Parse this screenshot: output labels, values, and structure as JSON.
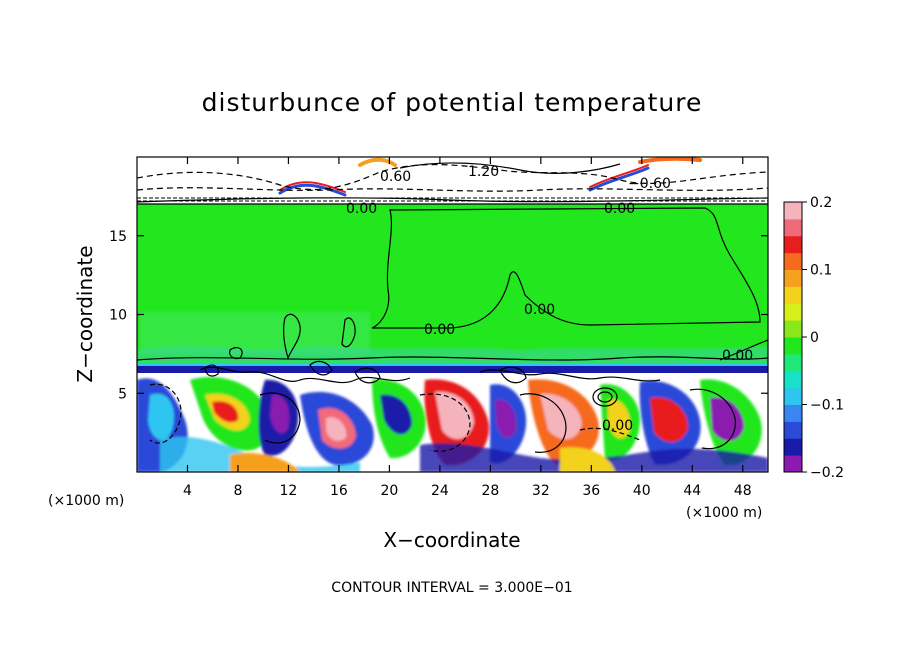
{
  "chart_data": {
    "type": "heatmap",
    "title": "disturbunce of potential temperature",
    "xlabel": "X−coordinate",
    "ylabel": "Z−coordinate",
    "x_unit_label": "(×1000 m)",
    "z_unit_label": "(×1000 m)",
    "xlim": [
      0,
      50
    ],
    "ylim": [
      0,
      20
    ],
    "x_ticks": [
      4,
      8,
      12,
      16,
      20,
      24,
      28,
      32,
      36,
      40,
      44,
      48
    ],
    "y_ticks": [
      5,
      10,
      15
    ],
    "colorbar": {
      "range": [
        -0.2,
        0.2
      ],
      "tick_values": [
        0.2,
        0.1,
        0,
        -0.1,
        -0.2
      ],
      "tick_labels": [
        "0.2",
        "0.1",
        "0",
        "−0.1",
        "−0.2"
      ],
      "colors": [
        "#8a1ab0",
        "#1a1aa8",
        "#2a4ad8",
        "#3a86f0",
        "#2ec6f0",
        "#19e0c8",
        "#1ee878",
        "#22e61e",
        "#8ae81a",
        "#d8ee1a",
        "#f2d21a",
        "#f5a01e",
        "#f56a1e",
        "#e81e1e",
        "#f06a7a",
        "#f5b4bc"
      ]
    },
    "contour_labels": [
      "0.60",
      "1.20",
      "−0.60",
      "0.00",
      "0.00",
      "0.00",
      "0.00",
      "0.00",
      "0.00"
    ],
    "contour_interval": "CONTOUR INTERVAL = 3.000E−01",
    "grid": false
  }
}
